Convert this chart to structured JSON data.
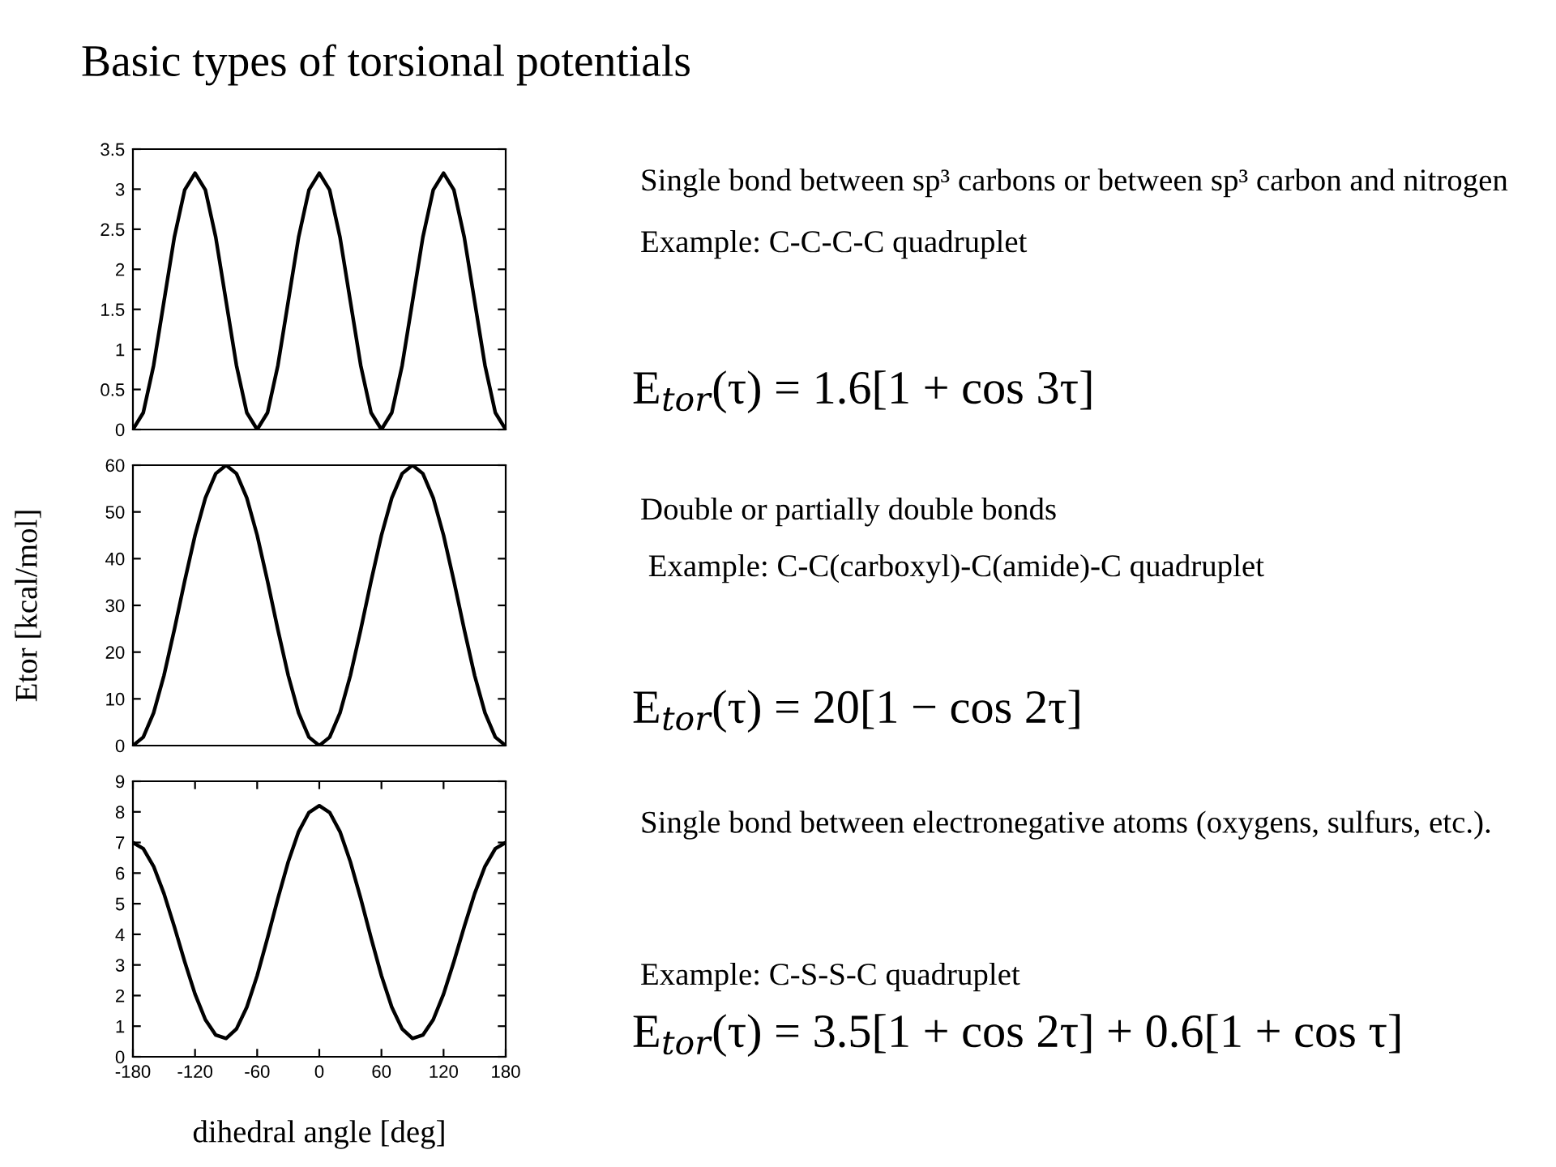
{
  "chart_data": [
    {
      "type": "line",
      "title": "Basic types of torsional potentials",
      "x": [
        -180,
        -170,
        -160,
        -150,
        -140,
        -130,
        -120,
        -110,
        -100,
        -90,
        -80,
        -70,
        -60,
        -50,
        -40,
        -30,
        -20,
        -10,
        0,
        10,
        20,
        30,
        40,
        50,
        60,
        70,
        80,
        90,
        100,
        110,
        120,
        130,
        140,
        150,
        160,
        170,
        180
      ],
      "series": [
        {
          "color": "#000000",
          "values": [
            0,
            0.21,
            0.8,
            1.6,
            2.4,
            2.99,
            3.2,
            2.99,
            2.4,
            1.6,
            0.8,
            0.21,
            0,
            0.21,
            0.8,
            1.6,
            2.4,
            2.99,
            3.2,
            2.99,
            2.4,
            1.6,
            0.8,
            0.21,
            0,
            0.21,
            0.8,
            1.6,
            2.4,
            2.99,
            3.2,
            2.99,
            2.4,
            1.6,
            0.8,
            0.21,
            0
          ]
        }
      ],
      "xlim": [
        -180,
        180
      ],
      "ylim": [
        0,
        3.5
      ],
      "yticks": [
        0,
        0.5,
        1,
        1.5,
        2,
        2.5,
        3,
        3.5
      ],
      "tick_labels": "y",
      "grid": false,
      "legend": false,
      "annotations": [
        "Single bond between sp³ carbons or between sp³ carbon and nitrogen",
        "Example: C-C-C-C quadruplet",
        "E$_{tor}$(τ) = 1.6[1 + cos 3τ]"
      ]
    },
    {
      "type": "line",
      "ylabel": "Etor [kcal/mol]",
      "x": [
        -180,
        -170,
        -160,
        -150,
        -140,
        -130,
        -120,
        -110,
        -100,
        -90,
        -80,
        -70,
        -60,
        -50,
        -40,
        -30,
        -20,
        -10,
        0,
        10,
        20,
        30,
        40,
        50,
        60,
        70,
        80,
        90,
        100,
        110,
        120,
        130,
        140,
        150,
        160,
        170,
        180
      ],
      "series": [
        {
          "color": "#000000",
          "values": [
            0,
            1.8,
            7.0,
            15,
            24.8,
            35.2,
            45,
            53.0,
            58.2,
            60,
            58.2,
            53.0,
            45,
            35.2,
            24.8,
            15,
            7.0,
            1.8,
            0,
            1.8,
            7.0,
            15,
            24.8,
            35.2,
            45,
            53.0,
            58.2,
            60,
            58.2,
            53.0,
            45,
            35.2,
            24.8,
            15,
            7.0,
            1.8,
            0
          ]
        }
      ],
      "xlim": [
        -180,
        180
      ],
      "ylim": [
        0,
        60
      ],
      "yticks": [
        0,
        10,
        20,
        30,
        40,
        50,
        60
      ],
      "tick_labels": "y",
      "grid": false,
      "legend": false,
      "annotations": [
        "Double or partially double bonds",
        " Example: C-C(carboxyl)-C(amide)-C quadruplet",
        "E$_{tor}$(τ) = 20[1 − cos 2τ]"
      ]
    },
    {
      "type": "line",
      "xlabel": "dihedral angle [deg]",
      "x": [
        -180,
        -170,
        -160,
        -150,
        -140,
        -130,
        -120,
        -110,
        -100,
        -90,
        -80,
        -70,
        -60,
        -50,
        -40,
        -30,
        -20,
        -10,
        0,
        10,
        20,
        30,
        40,
        50,
        60,
        70,
        80,
        90,
        100,
        110,
        120,
        130,
        140,
        150,
        160,
        170,
        180
      ],
      "series": [
        {
          "color": "#000000",
          "values": [
            7.0,
            6.8,
            6.22,
            5.33,
            4.25,
            3.11,
            2.05,
            1.21,
            0.71,
            0.6,
            0.91,
            1.62,
            2.65,
            3.88,
            5.17,
            6.37,
            7.35,
            7.98,
            8.2,
            7.98,
            7.35,
            6.37,
            5.17,
            3.88,
            2.65,
            1.62,
            0.91,
            0.6,
            0.71,
            1.21,
            2.05,
            3.11,
            4.25,
            5.33,
            6.22,
            6.8,
            7.0
          ]
        }
      ],
      "xlim": [
        -180,
        180
      ],
      "ylim": [
        0,
        9
      ],
      "xticks": [
        -180,
        -120,
        -60,
        0,
        60,
        120,
        180
      ],
      "yticks": [
        0,
        1,
        2,
        3,
        4,
        5,
        6,
        7,
        8,
        9
      ],
      "grid": false,
      "legend": false,
      "annotations": [
        "Single bond between electronegative atoms (oxygens, sulfurs, etc.).",
        "Example: C-S-S-C quadruplet",
        "E$_{tor}$(τ) = 3.5[1 + cos 2τ] + 0.6[1 + cos τ]"
      ]
    }
  ]
}
